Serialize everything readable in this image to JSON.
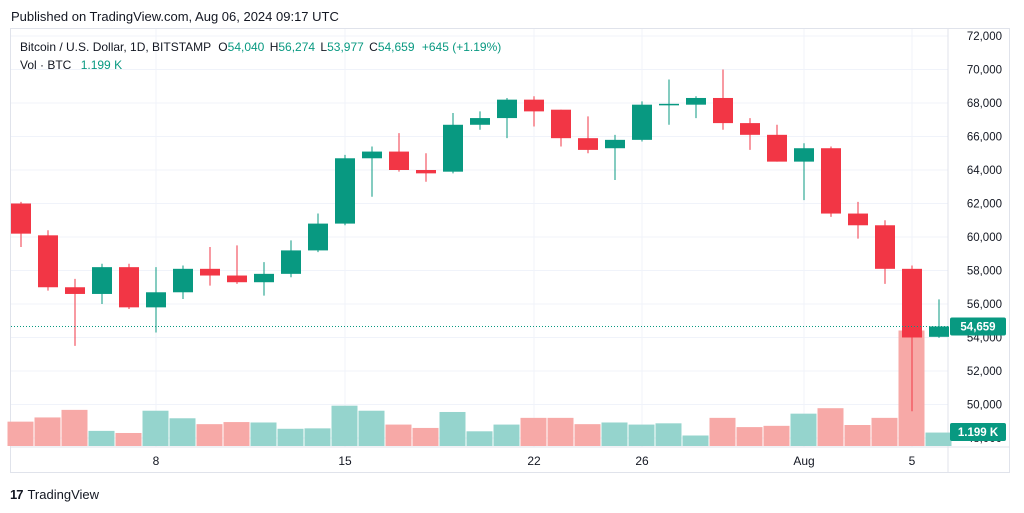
{
  "header": {
    "published": "Published on TradingView.com, Aug 06, 2024 09:17 UTC"
  },
  "legend": {
    "symbol": "Bitcoin / U.S. Dollar, 1D, BITSTAMP",
    "o_label": "O",
    "o_value": "54,040",
    "h_label": "H",
    "h_value": "56,274",
    "l_label": "L",
    "l_value": "53,977",
    "c_label": "C",
    "c_value": "54,659",
    "change": "+645 (+1.19%)",
    "vol_label": "Vol · BTC",
    "vol_value": "1.199 K"
  },
  "footer": {
    "brand": "TradingView",
    "logo_mark": "17"
  },
  "chart_data": {
    "type": "candlestick",
    "y_ticks": [
      "72,000",
      "70,000",
      "68,000",
      "66,000",
      "64,000",
      "62,000",
      "60,000",
      "58,000",
      "56,000",
      "54,000",
      "52,000",
      "50,000",
      "48,000"
    ],
    "ylim": [
      48000,
      72000
    ],
    "x_ticks": [
      {
        "index": 5,
        "label": "8"
      },
      {
        "index": 12,
        "label": "15"
      },
      {
        "index": 19,
        "label": "22"
      },
      {
        "index": 23,
        "label": "26"
      },
      {
        "index": 29,
        "label": "Aug"
      },
      {
        "index": 33,
        "label": "5"
      }
    ],
    "last_price_label": "54,659",
    "last_price": 54659,
    "last_volume_label": "1.199 K",
    "colors": {
      "up": "#089981",
      "down": "#f23645",
      "up_vol": "#95d4cd",
      "down_vol": "#f7a9a7"
    },
    "candles": [
      {
        "o": 62000,
        "h": 62100,
        "l": 59400,
        "c": 60200
      },
      {
        "o": 60100,
        "h": 60400,
        "l": 56800,
        "c": 57000
      },
      {
        "o": 57000,
        "h": 57500,
        "l": 53500,
        "c": 56600
      },
      {
        "o": 56600,
        "h": 58400,
        "l": 56000,
        "c": 58200
      },
      {
        "o": 58200,
        "h": 58400,
        "l": 55700,
        "c": 55800
      },
      {
        "o": 55800,
        "h": 58200,
        "l": 54300,
        "c": 56700
      },
      {
        "o": 56700,
        "h": 58300,
        "l": 56300,
        "c": 58100
      },
      {
        "o": 58100,
        "h": 59400,
        "l": 57100,
        "c": 57700
      },
      {
        "o": 57700,
        "h": 59500,
        "l": 57200,
        "c": 57300
      },
      {
        "o": 57300,
        "h": 58500,
        "l": 56500,
        "c": 57800
      },
      {
        "o": 57800,
        "h": 59800,
        "l": 57600,
        "c": 59200
      },
      {
        "o": 59200,
        "h": 61400,
        "l": 59100,
        "c": 60800
      },
      {
        "o": 60800,
        "h": 64900,
        "l": 60700,
        "c": 64700
      },
      {
        "o": 64700,
        "h": 65400,
        "l": 62400,
        "c": 65100
      },
      {
        "o": 65100,
        "h": 66200,
        "l": 63900,
        "c": 64000
      },
      {
        "o": 64000,
        "h": 65000,
        "l": 63300,
        "c": 63800
      },
      {
        "o": 63900,
        "h": 67400,
        "l": 63800,
        "c": 66700
      },
      {
        "o": 66700,
        "h": 67500,
        "l": 66400,
        "c": 67100
      },
      {
        "o": 67100,
        "h": 68300,
        "l": 65900,
        "c": 68200
      },
      {
        "o": 68200,
        "h": 68400,
        "l": 66600,
        "c": 67500
      },
      {
        "o": 67600,
        "h": 67600,
        "l": 65400,
        "c": 65900
      },
      {
        "o": 65900,
        "h": 67200,
        "l": 65000,
        "c": 65200
      },
      {
        "o": 65300,
        "h": 66100,
        "l": 63400,
        "c": 65800
      },
      {
        "o": 65800,
        "h": 68100,
        "l": 65700,
        "c": 67900
      },
      {
        "o": 67900,
        "h": 69400,
        "l": 66700,
        "c": 67950
      },
      {
        "o": 67900,
        "h": 68400,
        "l": 67100,
        "c": 68300
      },
      {
        "o": 68300,
        "h": 70000,
        "l": 66400,
        "c": 66800
      },
      {
        "o": 66800,
        "h": 67100,
        "l": 65200,
        "c": 66100
      },
      {
        "o": 66100,
        "h": 66700,
        "l": 64500,
        "c": 64500
      },
      {
        "o": 64500,
        "h": 65600,
        "l": 62200,
        "c": 65300
      },
      {
        "o": 65300,
        "h": 65400,
        "l": 61200,
        "c": 61400
      },
      {
        "o": 61400,
        "h": 62100,
        "l": 59900,
        "c": 60700
      },
      {
        "o": 60700,
        "h": 61000,
        "l": 57200,
        "c": 58100
      },
      {
        "o": 58100,
        "h": 58300,
        "l": 49600,
        "c": 54000
      },
      {
        "o": 54040,
        "h": 56274,
        "l": 53977,
        "c": 54659
      }
    ],
    "volume": [
      0.58,
      0.68,
      0.86,
      0.36,
      0.31,
      0.84,
      0.66,
      0.52,
      0.57,
      0.56,
      0.41,
      0.42,
      0.96,
      0.84,
      0.51,
      0.43,
      0.81,
      0.35,
      0.51,
      0.67,
      0.67,
      0.52,
      0.56,
      0.51,
      0.54,
      0.25,
      0.67,
      0.45,
      0.48,
      0.77,
      0.9,
      0.5,
      0.67,
      2.75,
      0.32
    ]
  }
}
